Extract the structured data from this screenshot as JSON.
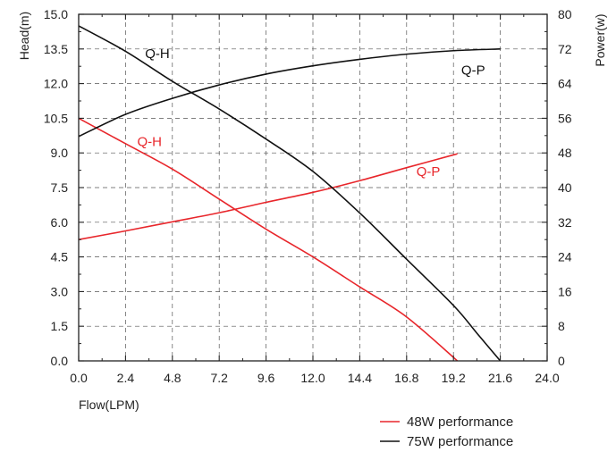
{
  "chart_data": {
    "type": "line",
    "xlabel": "Flow(LPM)",
    "ylabel_left": "Head(m)",
    "ylabel_right": "Power(w)",
    "xlim": [
      0,
      24
    ],
    "ylim_left": [
      0,
      15
    ],
    "ylim_right": [
      0,
      80
    ],
    "x_ticks": [
      "0.0",
      "2.4",
      "4.8",
      "7.2",
      "9.6",
      "12.0",
      "14.4",
      "16.8",
      "19.2",
      "21.6",
      "24.0"
    ],
    "y_left_ticks": [
      "0.0",
      "1.5",
      "3.0",
      "4.5",
      "6.0",
      "7.5",
      "9.0",
      "10.5",
      "12.0",
      "13.5",
      "15.0"
    ],
    "y_right_ticks": [
      "0",
      "8",
      "16",
      "24",
      "32",
      "40",
      "48",
      "56",
      "64",
      "72",
      "80"
    ],
    "grid": true,
    "grid_style": "dashed",
    "legend_position": "bottom-right",
    "series": [
      {
        "name": "48W performance",
        "curve_label": "Q-H",
        "color": "#e8262b",
        "axis": "left",
        "points": [
          [
            0,
            10.5
          ],
          [
            2.4,
            9.4
          ],
          [
            4.8,
            8.3
          ],
          [
            7.2,
            7.0
          ],
          [
            9.6,
            5.7
          ],
          [
            12.0,
            4.5
          ],
          [
            14.4,
            3.2
          ],
          [
            16.8,
            1.9
          ],
          [
            19.4,
            0.0
          ]
        ]
      },
      {
        "name": "48W performance",
        "curve_label": "Q-P",
        "color": "#e8262b",
        "axis": "right",
        "points": [
          [
            0,
            28.0
          ],
          [
            2.4,
            30.0
          ],
          [
            4.8,
            32.1
          ],
          [
            7.2,
            34.2
          ],
          [
            9.6,
            36.6
          ],
          [
            12.0,
            38.9
          ],
          [
            14.4,
            41.6
          ],
          [
            16.8,
            44.6
          ],
          [
            19.4,
            47.8
          ]
        ]
      },
      {
        "name": "75W performance",
        "curve_label": "Q-H",
        "color": "#111111",
        "axis": "left",
        "points": [
          [
            0,
            14.5
          ],
          [
            2.4,
            13.4
          ],
          [
            4.8,
            12.1
          ],
          [
            7.2,
            10.9
          ],
          [
            9.6,
            9.6
          ],
          [
            12.0,
            8.2
          ],
          [
            14.4,
            6.4
          ],
          [
            16.8,
            4.4
          ],
          [
            19.2,
            2.4
          ],
          [
            20.4,
            1.2
          ],
          [
            21.6,
            0.0
          ]
        ]
      },
      {
        "name": "75W performance",
        "curve_label": "Q-P",
        "color": "#111111",
        "axis": "right",
        "points": [
          [
            0,
            51.8
          ],
          [
            2.4,
            56.9
          ],
          [
            4.8,
            60.6
          ],
          [
            7.2,
            63.7
          ],
          [
            9.6,
            66.2
          ],
          [
            12.0,
            68.1
          ],
          [
            14.4,
            69.6
          ],
          [
            16.8,
            70.8
          ],
          [
            19.2,
            71.6
          ],
          [
            21.6,
            72.0
          ]
        ]
      }
    ],
    "curve_labels": [
      {
        "text": "Q-H",
        "color": "#111111",
        "x": 3.4,
        "y": 13.1,
        "axis": "left"
      },
      {
        "text": "Q-P",
        "color": "#111111",
        "x": 19.6,
        "y": 12.4,
        "axis": "left"
      },
      {
        "text": "Q-H",
        "color": "#e8262b",
        "x": 3.0,
        "y": 9.3,
        "axis": "left"
      },
      {
        "text": "Q-P",
        "color": "#e8262b",
        "x": 17.3,
        "y": 8.0,
        "axis": "left"
      }
    ],
    "legend": [
      {
        "label": "48W performance",
        "color": "#e8262b"
      },
      {
        "label": "75W performance",
        "color": "#111111"
      }
    ]
  }
}
